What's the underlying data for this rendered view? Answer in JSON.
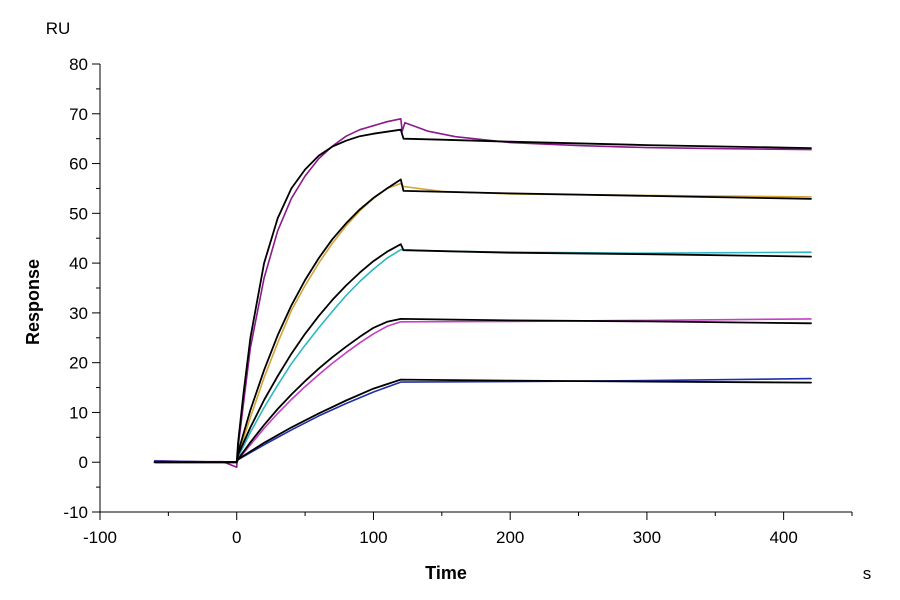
{
  "chart_data": {
    "type": "line",
    "title": "",
    "xlabel": "Time",
    "ylabel": "Response",
    "x_unit": "s",
    "y_unit": "RU",
    "xlim": [
      -100,
      450
    ],
    "ylim": [
      -10,
      80
    ],
    "x_ticks": [
      -100,
      0,
      100,
      200,
      300,
      400
    ],
    "y_ticks": [
      -10,
      0,
      10,
      20,
      30,
      40,
      50,
      60,
      70,
      80
    ],
    "x_tick_labels": [
      "-100",
      "0",
      "100",
      "200",
      "300",
      "400"
    ],
    "y_tick_labels": [
      "-10",
      "0",
      "10",
      "20",
      "30",
      "40",
      "50",
      "60",
      "70",
      "80"
    ],
    "grid": false,
    "legend": "none",
    "series": [
      {
        "color": "#8B1A8B",
        "points": [
          [
            -60,
            0.3
          ],
          [
            -30,
            0.1
          ],
          [
            -10,
            0.1
          ],
          [
            0,
            -1.0
          ],
          [
            1,
            3.0
          ],
          [
            5,
            12
          ],
          [
            10,
            23
          ],
          [
            20,
            37
          ],
          [
            30,
            46.5
          ],
          [
            40,
            53
          ],
          [
            50,
            57.5
          ],
          [
            60,
            61
          ],
          [
            70,
            63.5
          ],
          [
            80,
            65.5
          ],
          [
            90,
            66.8
          ],
          [
            100,
            67.6
          ],
          [
            110,
            68.4
          ],
          [
            120,
            69.0
          ],
          [
            121,
            66.5
          ],
          [
            123,
            68.2
          ],
          [
            140,
            66.5
          ],
          [
            160,
            65.4
          ],
          [
            200,
            64.2
          ],
          [
            250,
            63.6
          ],
          [
            300,
            63.2
          ],
          [
            350,
            63.0
          ],
          [
            420,
            62.8
          ]
        ]
      },
      {
        "color": "#000000",
        "points": [
          [
            -60,
            0
          ],
          [
            0,
            0
          ],
          [
            1,
            4
          ],
          [
            5,
            14
          ],
          [
            10,
            25
          ],
          [
            20,
            40
          ],
          [
            30,
            49
          ],
          [
            40,
            55
          ],
          [
            50,
            58.8
          ],
          [
            60,
            61.6
          ],
          [
            70,
            63.4
          ],
          [
            80,
            64.6
          ],
          [
            90,
            65.5
          ],
          [
            100,
            66.0
          ],
          [
            110,
            66.4
          ],
          [
            120,
            66.8
          ],
          [
            122,
            65.0
          ],
          [
            150,
            64.8
          ],
          [
            200,
            64.4
          ],
          [
            300,
            63.7
          ],
          [
            420,
            63.1
          ]
        ]
      },
      {
        "color": "#D4A437",
        "points": [
          [
            -60,
            0.2
          ],
          [
            0,
            0
          ],
          [
            1,
            1.5
          ],
          [
            10,
            9
          ],
          [
            20,
            17
          ],
          [
            30,
            24
          ],
          [
            40,
            30.5
          ],
          [
            50,
            35.5
          ],
          [
            60,
            40
          ],
          [
            70,
            44
          ],
          [
            80,
            47.5
          ],
          [
            90,
            50.5
          ],
          [
            100,
            53
          ],
          [
            110,
            55
          ],
          [
            120,
            56
          ],
          [
            122,
            55.4
          ],
          [
            150,
            54.4
          ],
          [
            200,
            53.9
          ],
          [
            300,
            53.6
          ],
          [
            420,
            53.3
          ]
        ]
      },
      {
        "color": "#000000",
        "points": [
          [
            -60,
            0
          ],
          [
            0,
            0
          ],
          [
            1,
            2
          ],
          [
            10,
            10.5
          ],
          [
            20,
            18.5
          ],
          [
            30,
            25.5
          ],
          [
            40,
            31.5
          ],
          [
            50,
            36.6
          ],
          [
            60,
            41
          ],
          [
            70,
            44.8
          ],
          [
            80,
            48
          ],
          [
            90,
            50.8
          ],
          [
            100,
            53.1
          ],
          [
            110,
            55
          ],
          [
            120,
            56.8
          ],
          [
            122,
            54.5
          ],
          [
            200,
            54.0
          ],
          [
            300,
            53.5
          ],
          [
            420,
            52.9
          ]
        ]
      },
      {
        "color": "#2BB8C4",
        "points": [
          [
            -60,
            0.2
          ],
          [
            0,
            0
          ],
          [
            1,
            1
          ],
          [
            10,
            6
          ],
          [
            20,
            11
          ],
          [
            30,
            15.5
          ],
          [
            40,
            19.8
          ],
          [
            50,
            23.5
          ],
          [
            60,
            27
          ],
          [
            70,
            30.3
          ],
          [
            80,
            33.5
          ],
          [
            90,
            36.3
          ],
          [
            100,
            38.8
          ],
          [
            110,
            41
          ],
          [
            120,
            42.7
          ],
          [
            150,
            42.4
          ],
          [
            200,
            42.2
          ],
          [
            300,
            42.0
          ],
          [
            420,
            42.2
          ]
        ]
      },
      {
        "color": "#000000",
        "points": [
          [
            -60,
            0
          ],
          [
            0,
            0
          ],
          [
            1,
            1.5
          ],
          [
            10,
            7
          ],
          [
            20,
            12.5
          ],
          [
            30,
            17.3
          ],
          [
            40,
            21.8
          ],
          [
            50,
            25.8
          ],
          [
            60,
            29.4
          ],
          [
            70,
            32.6
          ],
          [
            80,
            35.5
          ],
          [
            90,
            38.1
          ],
          [
            100,
            40.4
          ],
          [
            110,
            42.3
          ],
          [
            120,
            43.8
          ],
          [
            122,
            42.6
          ],
          [
            200,
            42.1
          ],
          [
            300,
            41.8
          ],
          [
            420,
            41.3
          ]
        ]
      },
      {
        "color": "#C43FC4",
        "points": [
          [
            -60,
            0.2
          ],
          [
            0,
            0
          ],
          [
            1,
            0.5
          ],
          [
            10,
            3.5
          ],
          [
            20,
            6.8
          ],
          [
            30,
            9.8
          ],
          [
            40,
            12.6
          ],
          [
            50,
            15.2
          ],
          [
            60,
            17.6
          ],
          [
            70,
            19.9
          ],
          [
            80,
            22
          ],
          [
            90,
            24
          ],
          [
            100,
            25.8
          ],
          [
            110,
            27.3
          ],
          [
            120,
            28.2
          ],
          [
            200,
            28.3
          ],
          [
            300,
            28.5
          ],
          [
            420,
            28.8
          ]
        ]
      },
      {
        "color": "#000000",
        "points": [
          [
            -60,
            0
          ],
          [
            0,
            0
          ],
          [
            1,
            0.6
          ],
          [
            10,
            4
          ],
          [
            20,
            7.5
          ],
          [
            30,
            10.7
          ],
          [
            40,
            13.6
          ],
          [
            50,
            16.3
          ],
          [
            60,
            18.8
          ],
          [
            70,
            21.1
          ],
          [
            80,
            23.2
          ],
          [
            90,
            25.2
          ],
          [
            100,
            27
          ],
          [
            110,
            28.2
          ],
          [
            120,
            28.8
          ],
          [
            200,
            28.5
          ],
          [
            300,
            28.3
          ],
          [
            420,
            27.9
          ]
        ]
      },
      {
        "color": "#1F2FA8",
        "points": [
          [
            -60,
            0.2
          ],
          [
            0,
            0
          ],
          [
            1,
            0.5
          ],
          [
            20,
            3.5
          ],
          [
            40,
            6.5
          ],
          [
            60,
            9.3
          ],
          [
            80,
            11.8
          ],
          [
            100,
            14.1
          ],
          [
            120,
            16.1
          ],
          [
            200,
            16.2
          ],
          [
            300,
            16.4
          ],
          [
            420,
            16.8
          ]
        ]
      },
      {
        "color": "#000000",
        "points": [
          [
            -60,
            0
          ],
          [
            0,
            0
          ],
          [
            1,
            0.6
          ],
          [
            20,
            3.9
          ],
          [
            40,
            7
          ],
          [
            60,
            9.8
          ],
          [
            80,
            12.4
          ],
          [
            100,
            14.8
          ],
          [
            120,
            16.6
          ],
          [
            200,
            16.4
          ],
          [
            300,
            16.2
          ],
          [
            420,
            16.0
          ]
        ]
      }
    ]
  }
}
